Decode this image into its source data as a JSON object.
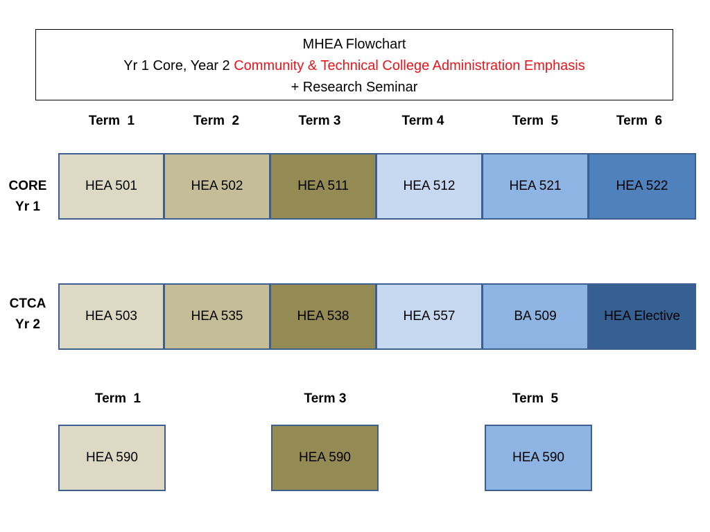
{
  "title": {
    "line1": "MHEA Flowchart",
    "line2_prefix": "Yr 1 Core, Year 2 ",
    "line2_emphasis": "Community & Technical College Administration Emphasis",
    "line3": "+ Research Seminar"
  },
  "term_headers": [
    "Term  1",
    "Term  2",
    "Term 3",
    "Term 4",
    "Term  5",
    "Term  6"
  ],
  "rows": [
    {
      "label_line1": "CORE",
      "label_line2": "Yr 1",
      "courses": [
        "HEA 501",
        "HEA 502",
        "HEA 511",
        "HEA 512",
        "HEA 521",
        "HEA 522"
      ]
    },
    {
      "label_line1": "CTCA",
      "label_line2": "Yr 2",
      "courses": [
        "HEA 503",
        "HEA 535",
        "HEA 538",
        "HEA 557",
        "BA 509",
        "HEA Elective"
      ]
    }
  ],
  "seminar_terms": [
    "Term  1",
    "Term 3",
    "Term  5"
  ],
  "seminar_courses": [
    "HEA 590",
    "HEA 590",
    "HEA 590"
  ],
  "colors": {
    "emphasis": "#e8151b",
    "term1": "#ddd9c4",
    "term2": "#c4bd97",
    "term3": "#948a54",
    "term4": "#c6d9f1",
    "term5": "#8eb4e3",
    "term6_core": "#4f81bd",
    "term6_ctca": "#376092",
    "border": "#3d5f8f"
  }
}
